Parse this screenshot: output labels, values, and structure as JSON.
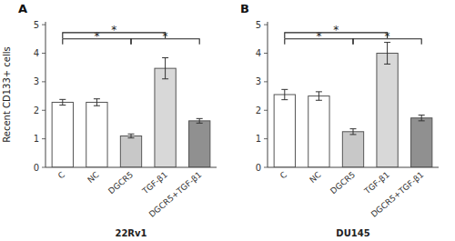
{
  "chart_data": [
    {
      "type": "bar",
      "title": "A",
      "xlabel": "22Rv1",
      "ylabel": "Recent CD133+ cells",
      "categories": [
        "C",
        "NC",
        "DGCR5",
        "TGF-β1",
        "DGCR5+TGF-β1"
      ],
      "values": [
        2.28,
        2.28,
        1.1,
        3.47,
        1.63
      ],
      "errors": [
        0.1,
        0.12,
        0.07,
        0.37,
        0.08
      ],
      "colors": [
        "#ffffff",
        "#ffffff",
        "#c8c8c8",
        "#d8d8d8",
        "#909090"
      ],
      "significance": [
        {
          "x1": 0,
          "x2": 2,
          "y": 4.5,
          "label": "*"
        },
        {
          "x1": 0,
          "x2": 3,
          "y": 4.72,
          "label": "*"
        },
        {
          "x1": 2,
          "x2": 4,
          "y": 4.5,
          "label": "*"
        }
      ],
      "ylim": [
        0,
        5.1
      ],
      "yticks": [
        0,
        1,
        2,
        3,
        4,
        5
      ],
      "grid": false
    },
    {
      "type": "bar",
      "title": "B",
      "xlabel": "DU145",
      "categories": [
        "C",
        "NC",
        "DGCR5",
        "TGF-β1",
        "DGCR5+TGF-β1"
      ],
      "values": [
        2.55,
        2.5,
        1.25,
        4.0,
        1.73
      ],
      "errors": [
        0.18,
        0.15,
        0.1,
        0.38,
        0.1
      ],
      "colors": [
        "#ffffff",
        "#ffffff",
        "#c8c8c8",
        "#d8d8d8",
        "#909090"
      ],
      "significance": [
        {
          "x1": 0,
          "x2": 2,
          "y": 4.5,
          "label": "*"
        },
        {
          "x1": 0,
          "x2": 3,
          "y": 4.72,
          "label": "*"
        },
        {
          "x1": 2,
          "x2": 4,
          "y": 4.5,
          "label": "*"
        }
      ],
      "ylim": [
        0,
        5.1
      ],
      "yticks": [
        0,
        1,
        2,
        3,
        4,
        5
      ],
      "grid": false
    }
  ]
}
